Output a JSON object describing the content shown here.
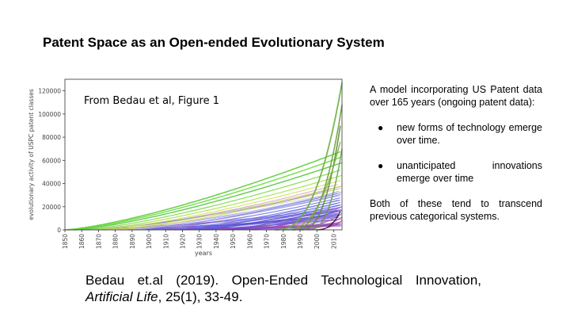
{
  "slide": {
    "title": "Patent Space as an Open-ended Evolutionary System",
    "figure_caption": "From Bedau et al, Figure 1",
    "description": "A model incorporating US Patent data over 165 years (ongoing patent data):",
    "bullets": [
      "new forms of technology emerge over time.",
      "unanticipated innovations emerge over time"
    ],
    "conclusion": "Both of these tend to transcend previous categorical systems.",
    "citation_part1": "Bedau et.al (2019). Open-Ended Technological Innovation,",
    "citation_journal": "Artificial Life",
    "citation_part2": ", 25(1), 33-49."
  },
  "chart_data": {
    "type": "line",
    "xlabel": "years",
    "ylabel": "evolutionary activity of USPC patent classes",
    "xlim": [
      1850,
      2015
    ],
    "ylim": [
      0,
      130000
    ],
    "x_ticks": [
      "1850",
      "1860",
      "1870",
      "1880",
      "1890",
      "1900",
      "1910",
      "1920",
      "1930",
      "1940",
      "1950",
      "1960",
      "1970",
      "1980",
      "1990",
      "2000",
      "2010"
    ],
    "y_ticks": [
      "0",
      "20000",
      "40000",
      "60000",
      "80000",
      "100000",
      "120000"
    ],
    "y_tick_values": [
      0,
      20000,
      40000,
      60000,
      80000,
      100000,
      120000
    ],
    "grid": false,
    "legend": "none",
    "series": [
      {
        "start": 1850,
        "end_value": 68000,
        "color": "#5ccf3a",
        "width": 1.6
      },
      {
        "start": 1852,
        "end_value": 63000,
        "color": "#6bd83d",
        "width": 1.4
      },
      {
        "start": 1855,
        "end_value": 58000,
        "color": "#4fc835",
        "width": 1.4
      },
      {
        "start": 1860,
        "end_value": 52000,
        "color": "#7ad943",
        "width": 1.2
      },
      {
        "start": 1865,
        "end_value": 47000,
        "color": "#a8e04a",
        "width": 1.2
      },
      {
        "start": 1870,
        "end_value": 43000,
        "color": "#c8e64e",
        "width": 1.1
      },
      {
        "start": 1875,
        "end_value": 38000,
        "color": "#d6e552",
        "width": 1.0
      },
      {
        "start": 1880,
        "end_value": 36000,
        "color": "#e0e25a",
        "width": 1.0
      },
      {
        "start": 1885,
        "end_value": 33000,
        "color": "#b7c9e8",
        "width": 1.0
      },
      {
        "start": 1890,
        "end_value": 30000,
        "color": "#9aa7ea",
        "width": 1.0
      },
      {
        "start": 1900,
        "end_value": 28000,
        "color": "#7d86e6",
        "width": 1.0
      },
      {
        "start": 1910,
        "end_value": 26000,
        "color": "#6b6fe3",
        "width": 1.0
      },
      {
        "start": 1920,
        "end_value": 24000,
        "color": "#5a58df",
        "width": 1.0
      },
      {
        "start": 1930,
        "end_value": 22000,
        "color": "#4c47da",
        "width": 1.0
      },
      {
        "start": 1945,
        "end_value": 20000,
        "color": "#6a3fd4",
        "width": 1.0
      },
      {
        "start": 1960,
        "end_value": 17000,
        "color": "#8a3cc6",
        "width": 1.0
      },
      {
        "start": 1975,
        "end_value": 14000,
        "color": "#a63ab0",
        "width": 1.0
      },
      {
        "start": 1985,
        "end_value": 11000,
        "color": "#b8389a",
        "width": 1.0
      },
      {
        "start": 1995,
        "end_value": 8000,
        "color": "#c23585",
        "width": 1.0
      },
      {
        "start": 1975,
        "end_value": 127000,
        "color": "#6cae3c",
        "width": 1.8
      },
      {
        "start": 1985,
        "end_value": 108000,
        "color": "#6a9f3c",
        "width": 1.6
      },
      {
        "start": 1990,
        "end_value": 100000,
        "color": "#5c8c36",
        "width": 1.6
      },
      {
        "start": 1980,
        "end_value": 82000,
        "color": "#7bb040",
        "width": 1.4
      },
      {
        "start": 1995,
        "end_value": 70000,
        "color": "#58a440",
        "width": 1.4
      },
      {
        "start": 2000,
        "end_value": 19000,
        "color": "#1a1a1a",
        "width": 1.2
      }
    ]
  }
}
